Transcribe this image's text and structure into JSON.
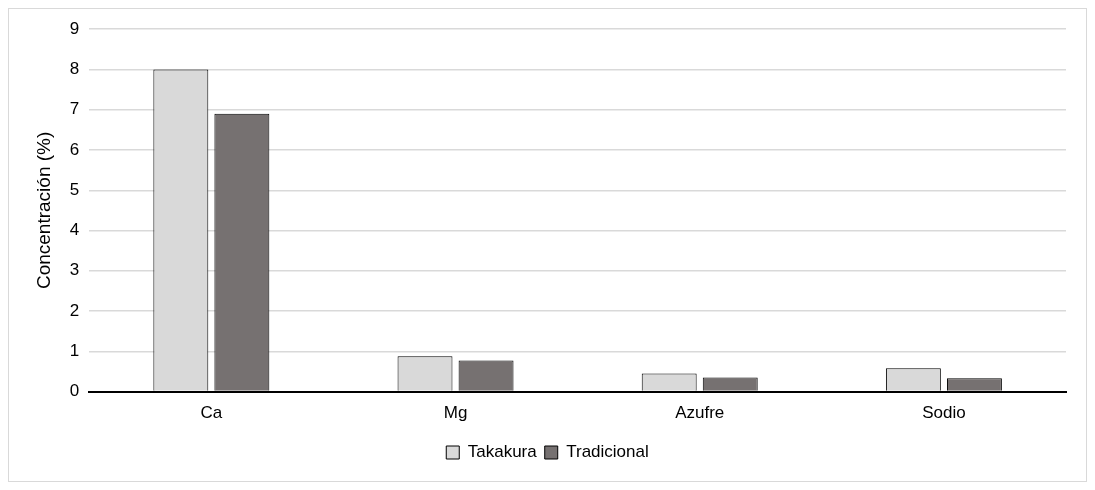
{
  "chart_data": {
    "type": "bar",
    "ylabel": "Concentración (%)",
    "categories": [
      "Ca",
      "Mg",
      "Azufre",
      "Sodio"
    ],
    "series": [
      {
        "name": "Takakura",
        "color": "#d9d9d9",
        "values": [
          8.0,
          0.88,
          0.45,
          0.58
        ]
      },
      {
        "name": "Tradicional",
        "color": "#767171",
        "values": [
          6.9,
          0.77,
          0.35,
          0.33
        ]
      }
    ],
    "ylim": [
      0,
      9
    ],
    "yticks": [
      0,
      1,
      2,
      3,
      4,
      5,
      6,
      7,
      8,
      9
    ],
    "grid": "y",
    "legend": "bottom"
  }
}
